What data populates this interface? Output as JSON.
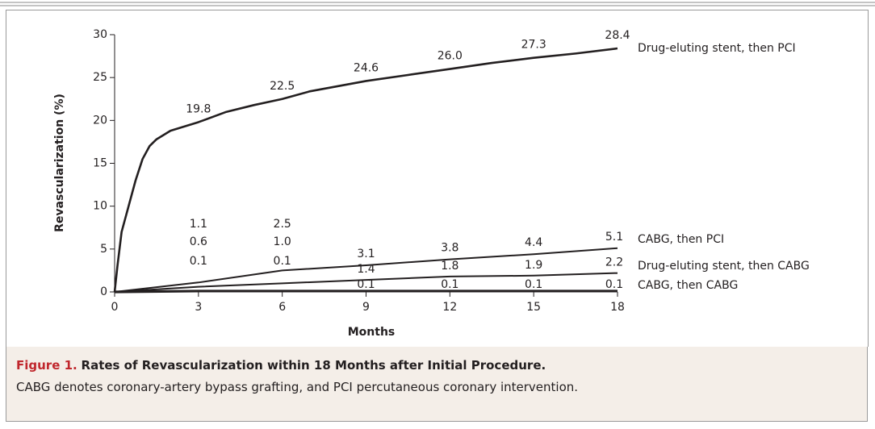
{
  "chart_data": {
    "type": "line",
    "xlabel": "Months",
    "ylabel": "Revascularization (%)",
    "xlim": [
      0,
      18
    ],
    "xticks": [
      0,
      3,
      6,
      9,
      12,
      15,
      18
    ],
    "ylim": [
      0,
      30
    ],
    "yticks": [
      0,
      5,
      10,
      15,
      20,
      25,
      30
    ],
    "series": [
      {
        "name": "Drug-eluting stent, then PCI",
        "color": "#231f20",
        "x": [
          0,
          0.1,
          0.25,
          0.5,
          0.75,
          1,
          1.25,
          1.5,
          2,
          3,
          4,
          5,
          6,
          7,
          8,
          9,
          10.5,
          12,
          13.5,
          15,
          16.5,
          18
        ],
        "values": [
          0,
          3,
          7,
          10,
          13,
          15.5,
          17,
          17.8,
          18.8,
          19.8,
          21,
          21.8,
          22.5,
          23.4,
          24,
          24.6,
          25.3,
          26.0,
          26.7,
          27.3,
          27.8,
          28.4
        ],
        "value_labels": [
          null,
          null,
          null,
          null,
          null,
          null,
          null,
          null,
          null,
          "19.8",
          null,
          null,
          "22.5",
          null,
          null,
          "24.6",
          null,
          "26.0",
          null,
          "27.3",
          null,
          "28.4"
        ]
      },
      {
        "name": "CABG, then PCI",
        "color": "#231f20",
        "x": [
          0,
          3,
          6,
          9,
          12,
          15,
          18
        ],
        "values": [
          0,
          1.1,
          2.5,
          3.1,
          3.8,
          4.4,
          5.1
        ],
        "value_labels": [
          null,
          "1.1",
          "2.5",
          "3.1",
          "3.8",
          "4.4",
          "5.1"
        ]
      },
      {
        "name": "Drug-eluting stent, then CABG",
        "color": "#231f20",
        "x": [
          0,
          3,
          6,
          9,
          12,
          15,
          18
        ],
        "values": [
          0,
          0.6,
          1.0,
          1.4,
          1.8,
          1.9,
          2.2
        ],
        "value_labels": [
          null,
          "0.6",
          "1.0",
          "1.4",
          "1.8",
          "1.9",
          "2.2"
        ]
      },
      {
        "name": "CABG, then CABG",
        "color": "#231f20",
        "x": [
          0,
          3,
          6,
          9,
          12,
          15,
          18
        ],
        "values": [
          0,
          0.1,
          0.1,
          0.1,
          0.1,
          0.1,
          0.1
        ],
        "value_labels": [
          null,
          "0.1",
          "0.1",
          "0.1",
          "0.1",
          "0.1",
          "0.1"
        ]
      }
    ]
  },
  "caption": {
    "label": "Figure 1.",
    "title": "Rates of Revascularization within 18 Months after Initial Procedure.",
    "text": "CABG denotes coronary-artery bypass grafting, and PCI percutaneous coronary intervention."
  }
}
